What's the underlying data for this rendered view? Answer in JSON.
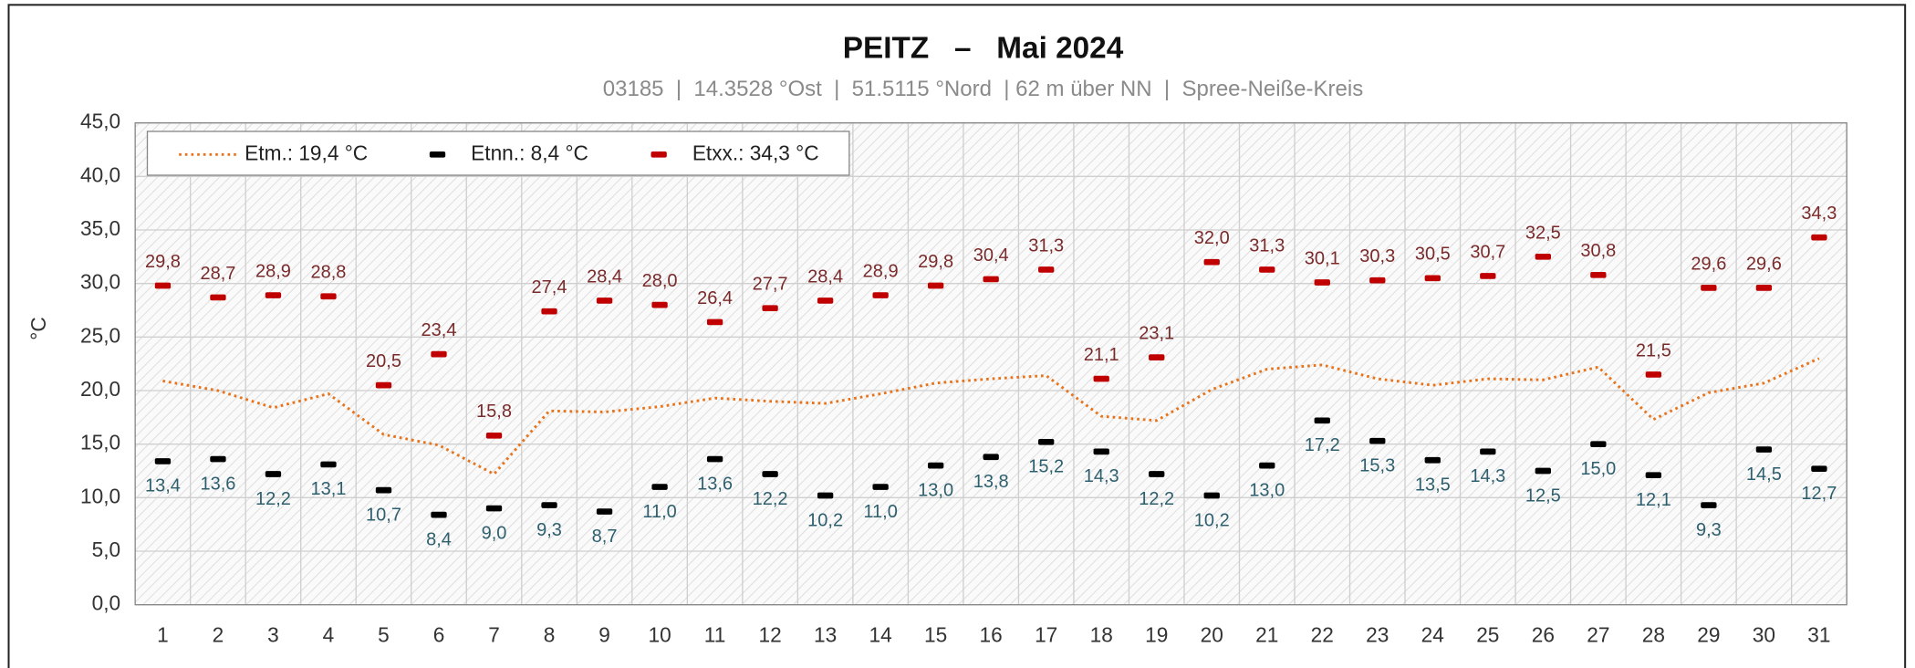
{
  "chart_data": {
    "type": "line",
    "title": "PEITZ   –   Mai 2024",
    "subtitle": "03185  |  14.3528 °Ost  |  51.5115 °Nord  | 62 m über NN  |  Spree-Neiße-Kreis",
    "y_label": "°C",
    "categories": [
      "1",
      "2",
      "3",
      "4",
      "5",
      "6",
      "7",
      "8",
      "9",
      "10",
      "11",
      "12",
      "13",
      "14",
      "15",
      "16",
      "17",
      "18",
      "19",
      "20",
      "21",
      "22",
      "23",
      "24",
      "25",
      "26",
      "27",
      "28",
      "29",
      "30",
      "31"
    ],
    "ylim": [
      0,
      45
    ],
    "yticks": [
      {
        "value": 0,
        "label": "0,0"
      },
      {
        "value": 5,
        "label": "5,0"
      },
      {
        "value": 10,
        "label": "10,0"
      },
      {
        "value": 15,
        "label": "15,0"
      },
      {
        "value": 20,
        "label": "20,0"
      },
      {
        "value": 25,
        "label": "25,0"
      },
      {
        "value": 30,
        "label": "30,0"
      },
      {
        "value": 35,
        "label": "35,0"
      },
      {
        "value": 40,
        "label": "40,0"
      },
      {
        "value": 45,
        "label": "45,0"
      }
    ],
    "grid": true,
    "legend": "top-left",
    "series": [
      {
        "name": "Etm.: 19,4 °C",
        "color": "#e8731a",
        "style": "dotted-line",
        "values": [
          20.9,
          20.0,
          18.4,
          19.7,
          15.9,
          14.9,
          12.2,
          18.1,
          18.0,
          18.5,
          19.3,
          19.0,
          18.8,
          19.7,
          20.7,
          21.1,
          21.4,
          17.6,
          17.2,
          20.1,
          22.0,
          22.4,
          21.1,
          20.5,
          21.1,
          21.0,
          22.2,
          17.3,
          19.8,
          20.7,
          23.0
        ]
      },
      {
        "name": "Etnn.: 8,4 °C",
        "color": "#000000",
        "style": "dash",
        "label_color": "#2e5f6e",
        "label_position": "below",
        "values": [
          13.4,
          13.6,
          12.2,
          13.1,
          10.7,
          8.4,
          9.0,
          9.3,
          8.7,
          11.0,
          13.6,
          12.2,
          10.2,
          11.0,
          13.0,
          13.8,
          15.2,
          14.3,
          12.2,
          10.2,
          13.0,
          17.2,
          15.3,
          13.5,
          14.3,
          12.5,
          15.0,
          12.1,
          9.3,
          14.5,
          12.7
        ],
        "value_labels": [
          "13,4",
          "13,6",
          "12,2",
          "13,1",
          "10,7",
          "8,4",
          "9,0",
          "9,3",
          "8,7",
          "11,0",
          "13,6",
          "12,2",
          "10,2",
          "11,0",
          "13,0",
          "13,8",
          "15,2",
          "14,3",
          "12,2",
          "10,2",
          "13,0",
          "17,2",
          "15,3",
          "13,5",
          "14,3",
          "12,5",
          "15,0",
          "12,1",
          "9,3",
          "14,5",
          "12,7"
        ]
      },
      {
        "name": "Etxx.: 34,3 °C",
        "color": "#c00000",
        "style": "dash",
        "label_color": "#7a2a2a",
        "label_position": "above",
        "values": [
          29.8,
          28.7,
          28.9,
          28.8,
          20.5,
          23.4,
          15.8,
          27.4,
          28.4,
          28.0,
          26.4,
          27.7,
          28.4,
          28.9,
          29.8,
          30.4,
          31.3,
          21.1,
          23.1,
          32.0,
          31.3,
          30.1,
          30.3,
          30.5,
          30.7,
          32.5,
          30.8,
          21.5,
          29.6,
          29.6,
          34.3
        ],
        "value_labels": [
          "29,8",
          "28,7",
          "28,9",
          "28,8",
          "20,5",
          "23,4",
          "15,8",
          "27,4",
          "28,4",
          "28,0",
          "26,4",
          "27,7",
          "28,4",
          "28,9",
          "29,8",
          "30,4",
          "31,3",
          "21,1",
          "23,1",
          "32,0",
          "31,3",
          "30,1",
          "30,3",
          "30,5",
          "30,7",
          "32,5",
          "30,8",
          "21,5",
          "29,6",
          "29,6",
          "34,3"
        ]
      }
    ]
  }
}
